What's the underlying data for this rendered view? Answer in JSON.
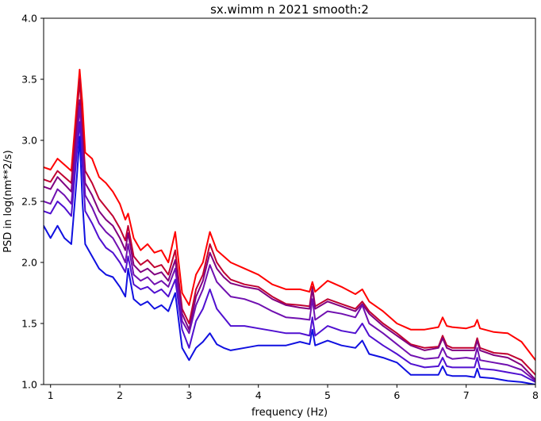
{
  "chart_data": {
    "type": "line",
    "title": "sx.wimm n 2021 smooth:2",
    "xlabel": "frequency (Hz)",
    "ylabel": "PSD in log(nm**2/s)",
    "xlim": [
      0.9,
      8.0
    ],
    "ylim": [
      1.0,
      4.0
    ],
    "xticks": [
      1,
      2,
      3,
      4,
      5,
      6,
      7,
      8
    ],
    "xtick_labels": [
      "1",
      "2",
      "3",
      "4",
      "5",
      "6",
      "7",
      "8"
    ],
    "yticks": [
      1.0,
      1.5,
      2.0,
      2.5,
      3.0,
      3.5,
      4.0
    ],
    "ytick_labels": [
      "1.0",
      "1.5",
      "2.0",
      "2.5",
      "3.0",
      "3.5",
      "4.0"
    ],
    "grid": false,
    "legend": "none",
    "x": [
      0.9,
      1.0,
      1.1,
      1.2,
      1.3,
      1.38,
      1.42,
      1.46,
      1.5,
      1.6,
      1.7,
      1.8,
      1.9,
      2.0,
      2.08,
      2.12,
      2.2,
      2.3,
      2.4,
      2.5,
      2.6,
      2.7,
      2.8,
      2.9,
      3.0,
      3.1,
      3.2,
      3.3,
      3.4,
      3.5,
      3.6,
      3.8,
      4.0,
      4.2,
      4.4,
      4.6,
      4.74,
      4.78,
      4.82,
      5.0,
      5.2,
      5.4,
      5.5,
      5.6,
      5.8,
      6.0,
      6.2,
      6.4,
      6.6,
      6.66,
      6.72,
      6.8,
      7.0,
      7.12,
      7.16,
      7.2,
      7.4,
      7.6,
      7.8,
      8.0
    ],
    "series": [
      {
        "color": "#ff0000",
        "values": [
          2.78,
          2.76,
          2.85,
          2.8,
          2.75,
          3.3,
          3.58,
          3.3,
          2.9,
          2.85,
          2.7,
          2.65,
          2.58,
          2.48,
          2.35,
          2.4,
          2.2,
          2.1,
          2.15,
          2.08,
          2.1,
          2.0,
          2.25,
          1.75,
          1.65,
          1.9,
          2.0,
          2.25,
          2.1,
          2.05,
          2.0,
          1.95,
          1.9,
          1.82,
          1.78,
          1.78,
          1.76,
          1.84,
          1.76,
          1.85,
          1.8,
          1.74,
          1.78,
          1.68,
          1.6,
          1.5,
          1.45,
          1.45,
          1.47,
          1.55,
          1.48,
          1.47,
          1.46,
          1.48,
          1.53,
          1.46,
          1.43,
          1.42,
          1.35,
          1.2
        ]
      },
      {
        "color": "#c00030",
        "values": [
          2.68,
          2.66,
          2.75,
          2.7,
          2.65,
          3.2,
          3.5,
          3.1,
          2.75,
          2.65,
          2.52,
          2.45,
          2.38,
          2.28,
          2.18,
          2.3,
          2.05,
          1.98,
          2.02,
          1.96,
          1.98,
          1.9,
          2.1,
          1.62,
          1.5,
          1.78,
          1.9,
          2.15,
          2.0,
          1.92,
          1.86,
          1.82,
          1.8,
          1.72,
          1.66,
          1.65,
          1.64,
          1.8,
          1.64,
          1.7,
          1.66,
          1.62,
          1.68,
          1.6,
          1.5,
          1.42,
          1.33,
          1.3,
          1.31,
          1.4,
          1.32,
          1.3,
          1.3,
          1.3,
          1.38,
          1.3,
          1.26,
          1.25,
          1.2,
          1.08
        ]
      },
      {
        "color": "#800080",
        "values": [
          2.62,
          2.6,
          2.7,
          2.64,
          2.58,
          3.1,
          3.33,
          3.0,
          2.65,
          2.55,
          2.42,
          2.35,
          2.3,
          2.2,
          2.1,
          2.24,
          1.98,
          1.92,
          1.95,
          1.9,
          1.92,
          1.85,
          2.02,
          1.58,
          1.45,
          1.72,
          1.85,
          2.08,
          1.95,
          1.88,
          1.83,
          1.8,
          1.78,
          1.7,
          1.65,
          1.63,
          1.62,
          1.78,
          1.62,
          1.68,
          1.64,
          1.6,
          1.66,
          1.58,
          1.48,
          1.4,
          1.32,
          1.28,
          1.3,
          1.38,
          1.3,
          1.28,
          1.28,
          1.28,
          1.36,
          1.28,
          1.24,
          1.22,
          1.16,
          1.04
        ]
      },
      {
        "color": "#7010b0",
        "values": [
          2.5,
          2.48,
          2.6,
          2.55,
          2.48,
          3.0,
          3.28,
          2.92,
          2.55,
          2.45,
          2.32,
          2.25,
          2.2,
          2.1,
          2.0,
          2.15,
          1.9,
          1.85,
          1.88,
          1.82,
          1.85,
          1.8,
          1.95,
          1.52,
          1.42,
          1.65,
          1.78,
          1.98,
          1.84,
          1.78,
          1.72,
          1.7,
          1.66,
          1.6,
          1.55,
          1.54,
          1.53,
          1.7,
          1.53,
          1.6,
          1.58,
          1.55,
          1.65,
          1.5,
          1.42,
          1.33,
          1.24,
          1.21,
          1.22,
          1.3,
          1.23,
          1.21,
          1.22,
          1.21,
          1.3,
          1.2,
          1.18,
          1.16,
          1.12,
          1.03
        ]
      },
      {
        "color": "#5010d0",
        "values": [
          2.42,
          2.4,
          2.5,
          2.45,
          2.38,
          2.9,
          3.15,
          2.8,
          2.42,
          2.32,
          2.2,
          2.12,
          2.08,
          2.0,
          1.92,
          2.05,
          1.82,
          1.78,
          1.8,
          1.75,
          1.78,
          1.72,
          1.86,
          1.45,
          1.3,
          1.52,
          1.62,
          1.78,
          1.62,
          1.55,
          1.48,
          1.48,
          1.46,
          1.44,
          1.42,
          1.42,
          1.4,
          1.55,
          1.4,
          1.48,
          1.44,
          1.42,
          1.5,
          1.4,
          1.32,
          1.25,
          1.17,
          1.14,
          1.15,
          1.22,
          1.15,
          1.14,
          1.14,
          1.14,
          1.22,
          1.13,
          1.12,
          1.1,
          1.08,
          1.02
        ]
      },
      {
        "color": "#1010e0",
        "values": [
          2.3,
          2.2,
          2.3,
          2.2,
          2.15,
          2.7,
          3.03,
          2.5,
          2.15,
          2.05,
          1.95,
          1.9,
          1.88,
          1.8,
          1.72,
          1.95,
          1.7,
          1.65,
          1.68,
          1.62,
          1.65,
          1.6,
          1.75,
          1.3,
          1.2,
          1.3,
          1.35,
          1.42,
          1.33,
          1.3,
          1.28,
          1.3,
          1.32,
          1.32,
          1.32,
          1.35,
          1.33,
          1.45,
          1.32,
          1.36,
          1.32,
          1.3,
          1.36,
          1.25,
          1.22,
          1.18,
          1.08,
          1.08,
          1.08,
          1.15,
          1.08,
          1.07,
          1.07,
          1.06,
          1.13,
          1.06,
          1.05,
          1.03,
          1.02,
          1.0
        ]
      }
    ]
  }
}
